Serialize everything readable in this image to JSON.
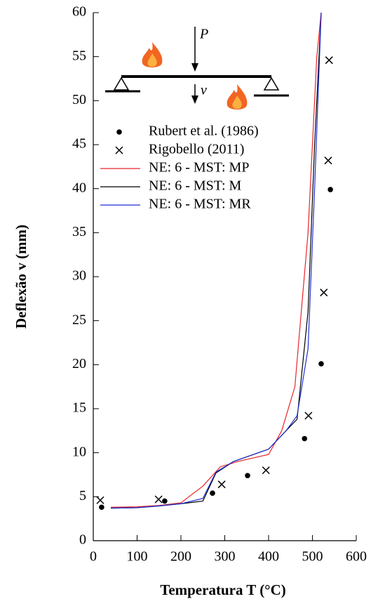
{
  "chart_data": {
    "type": "line",
    "xlabel": "Temperatura T (°C)",
    "ylabel": "Deflexão v (mm)",
    "annotations": [
      "P",
      "v"
    ],
    "xlim": [
      0,
      600
    ],
    "xticks": [
      0,
      100,
      200,
      300,
      400,
      500,
      600
    ],
    "ylim": [
      0,
      60
    ],
    "yticks": [
      0,
      5,
      10,
      15,
      20,
      25,
      30,
      35,
      40,
      45,
      50,
      55,
      60
    ],
    "series": [
      {
        "name": "Rubert et al. (1986)",
        "kind": "scatter",
        "marker": "dot",
        "color": "#000000",
        "x": [
          19,
          163,
          272,
          352,
          482,
          520,
          541
        ],
        "values": [
          3.8,
          4.5,
          5.4,
          7.4,
          11.6,
          20.1,
          39.9
        ]
      },
      {
        "name": "Rigobello (2011)",
        "kind": "scatter",
        "marker": "cross",
        "color": "#000000",
        "x": [
          16,
          149,
          293,
          394,
          491,
          526,
          536,
          538
        ],
        "values": [
          4.6,
          4.7,
          6.4,
          8.0,
          14.2,
          28.2,
          43.2,
          54.6
        ]
      },
      {
        "name": "NE: 6 - MST: MP",
        "kind": "line",
        "color": "#e8262a",
        "x": [
          40,
          100,
          150,
          200,
          250,
          290,
          330,
          400,
          430,
          460,
          490,
          510,
          520
        ],
        "values": [
          3.8,
          3.85,
          4.0,
          4.3,
          6.2,
          8.4,
          9.0,
          9.8,
          12.5,
          17.5,
          35,
          55,
          60
        ]
      },
      {
        "name": "NE: 6 - MST: M",
        "kind": "line",
        "color": "#000000",
        "x": [
          40,
          100,
          150,
          200,
          250,
          280,
          320,
          400,
          440,
          465,
          490,
          505,
          520
        ],
        "values": [
          3.7,
          3.75,
          3.95,
          4.2,
          4.5,
          7.7,
          9.0,
          10.4,
          12.5,
          13.8,
          26,
          45,
          60
        ]
      },
      {
        "name": "NE: 6 - MST: MR",
        "kind": "line",
        "color": "#1f2fd0",
        "x": [
          40,
          100,
          150,
          200,
          250,
          280,
          320,
          400,
          440,
          465,
          490,
          505,
          520
        ],
        "values": [
          3.7,
          3.75,
          3.95,
          4.2,
          4.8,
          7.8,
          9.0,
          10.4,
          12.5,
          14.2,
          21.8,
          40,
          60
        ]
      }
    ]
  }
}
